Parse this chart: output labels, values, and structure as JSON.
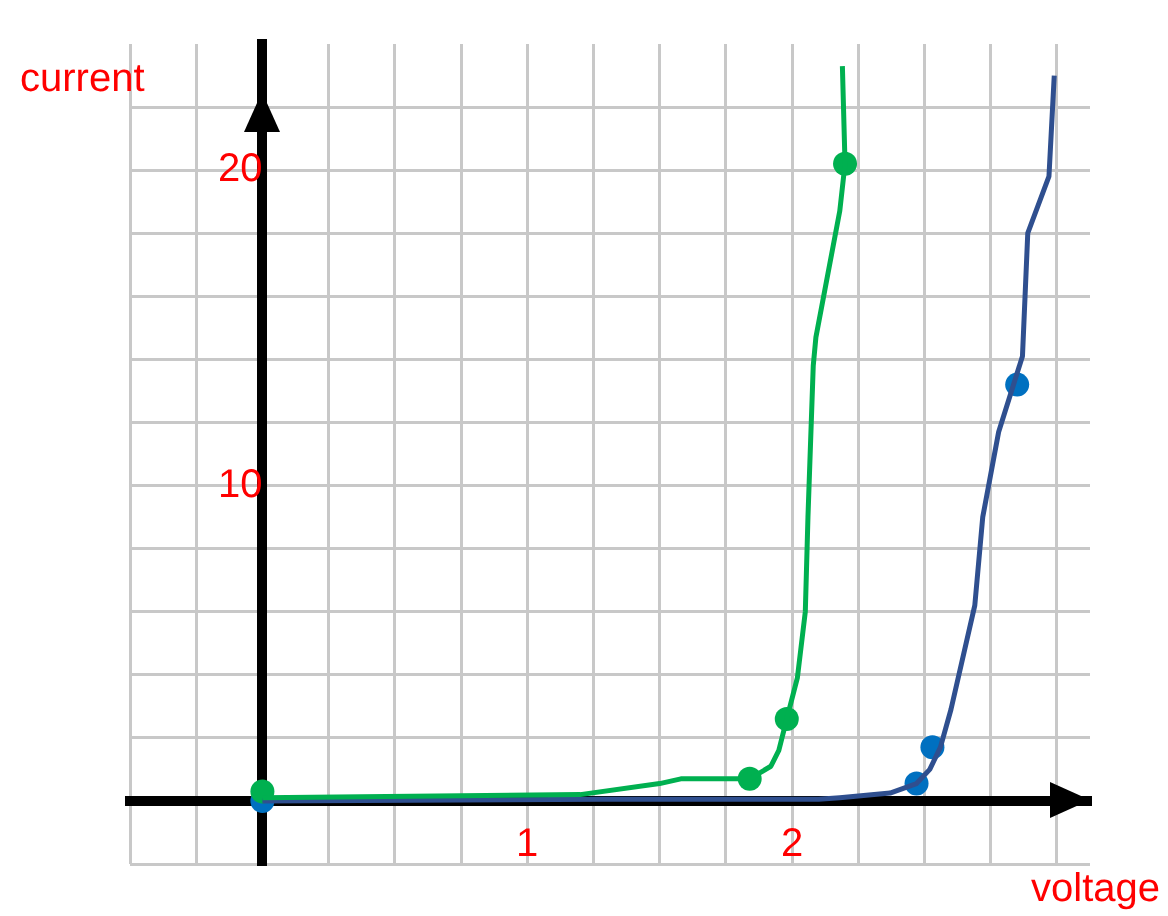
{
  "chart_data": {
    "type": "line",
    "xlabel": "voltage",
    "ylabel": "current",
    "xlim": [
      -0.5,
      3.125
    ],
    "ylim": [
      -2,
      24
    ],
    "xticks": [
      {
        "value": -0.5,
        "label": null
      },
      {
        "value": -0.25,
        "label": null
      },
      {
        "value": 0,
        "label": null
      },
      {
        "value": 0.25,
        "label": null
      },
      {
        "value": 0.5,
        "label": null
      },
      {
        "value": 0.75,
        "label": null
      },
      1,
      {
        "value": 1.25,
        "label": null
      },
      {
        "value": 1.5,
        "label": null
      },
      {
        "value": 1.75,
        "label": null
      },
      2,
      {
        "value": 2.25,
        "label": null
      },
      {
        "value": 2.5,
        "label": null
      },
      {
        "value": 2.75,
        "label": null
      },
      {
        "value": 3,
        "label": null
      }
    ],
    "yticks": [
      {
        "value": -2,
        "label": null
      },
      {
        "value": 0,
        "label": null
      },
      {
        "value": 2,
        "label": null
      },
      {
        "value": 4,
        "label": null
      },
      {
        "value": 6,
        "label": null
      },
      {
        "value": 8,
        "label": null
      },
      10,
      {
        "value": 12,
        "label": null
      },
      {
        "value": 14,
        "label": null
      },
      {
        "value": 16,
        "label": null
      },
      {
        "value": 18,
        "label": null
      },
      20,
      {
        "value": 22,
        "label": null
      }
    ],
    "grid": true,
    "legend": false,
    "series": [
      {
        "marker": "none",
        "color": "#00b050",
        "x": [
          0,
          1.2,
          1.5,
          1.58,
          1.84,
          1.92,
          1.95,
          1.98,
          2.02,
          2.05,
          2.06,
          2.08,
          2.09,
          2.18,
          2.2,
          2.19
        ],
        "values": [
          0.1,
          0.2,
          0.55,
          0.7,
          0.7,
          1.1,
          1.6,
          2.6,
          3.9,
          6,
          9,
          13.8,
          14.7,
          18.7,
          20.2,
          23.3
        ]
      },
      {
        "marker": "none",
        "color": "#2f4f8f",
        "x": [
          0,
          1.28,
          2.1,
          2.18,
          2.37,
          2.47,
          2.52,
          2.56,
          2.6,
          2.69,
          2.72,
          2.78,
          2.87,
          2.89,
          2.97,
          2.99
        ],
        "values": [
          0,
          0.05,
          0.05,
          0.1,
          0.25,
          0.55,
          1,
          1.7,
          2.9,
          6.2,
          9,
          11.7,
          14.1,
          18,
          19.8,
          23
        ]
      },
      {
        "type": "scatter",
        "marker": "circle",
        "color": "#00b050",
        "x": [
          0,
          1.84,
          1.98,
          2.2
        ],
        "values": [
          0.3,
          0.7,
          2.6,
          20.2
        ]
      },
      {
        "type": "scatter",
        "marker": "circle",
        "color": "#0070c0",
        "x": [
          0,
          2.47,
          2.53,
          2.85
        ],
        "values": [
          0,
          0.55,
          1.7,
          13.2
        ]
      }
    ]
  }
}
